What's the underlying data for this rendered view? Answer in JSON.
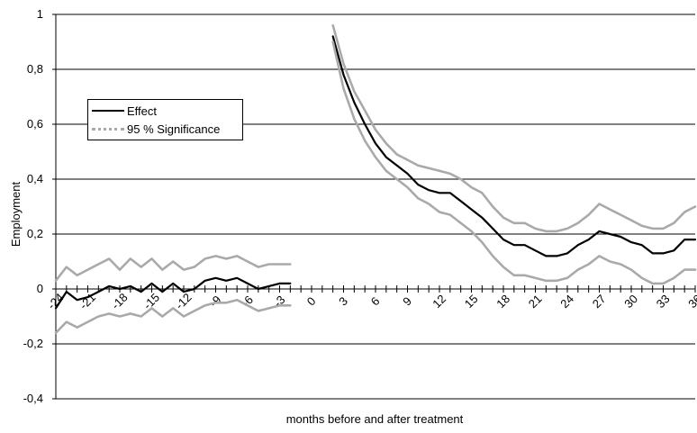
{
  "chart_data": {
    "type": "line",
    "title": "",
    "xlabel": "months before and after treatment",
    "ylabel": "Employment",
    "ylim": [
      -0.4,
      1.0
    ],
    "xlim": [
      -24,
      36
    ],
    "y_ticks": [
      -0.4,
      -0.2,
      0,
      0.2,
      0.4,
      0.6,
      0.8,
      1.0
    ],
    "y_tick_labels": [
      "-0,4",
      "-0,2",
      "0",
      "0,2",
      "0,4",
      "0,6",
      "0,8",
      "1"
    ],
    "x_tick_labels": [
      -24,
      -21,
      -18,
      -15,
      -12,
      -9,
      -6,
      -3,
      0,
      3,
      6,
      9,
      12,
      15,
      18,
      21,
      24,
      27,
      30,
      33,
      36
    ],
    "grid": "horizontal",
    "legend_position": "upper-left",
    "series": [
      {
        "name": "Effect",
        "color": "#000000",
        "segments": [
          {
            "x": [
              -24,
              -23,
              -22,
              -21,
              -20,
              -19,
              -18,
              -17,
              -16,
              -15,
              -14,
              -13,
              -12,
              -11,
              -10,
              -9,
              -8,
              -7,
              -6,
              -5,
              -4,
              -3,
              -2
            ],
            "y": [
              -0.07,
              -0.01,
              -0.04,
              -0.03,
              -0.01,
              0.01,
              0.0,
              0.01,
              -0.01,
              0.02,
              -0.01,
              0.02,
              -0.01,
              0.0,
              0.03,
              0.04,
              0.03,
              0.04,
              0.02,
              0.0,
              0.01,
              0.02,
              0.02
            ]
          },
          {
            "x": [
              2,
              3,
              4,
              5,
              6,
              7,
              8,
              9,
              10,
              11,
              12,
              13,
              14,
              15,
              16,
              17,
              18,
              19,
              20,
              21,
              22,
              23,
              24,
              25,
              26,
              27,
              28,
              29,
              30,
              31,
              32,
              33,
              34,
              35,
              36
            ],
            "y": [
              0.92,
              0.78,
              0.68,
              0.6,
              0.53,
              0.48,
              0.45,
              0.42,
              0.38,
              0.36,
              0.35,
              0.35,
              0.32,
              0.29,
              0.26,
              0.22,
              0.18,
              0.16,
              0.16,
              0.14,
              0.12,
              0.12,
              0.13,
              0.16,
              0.18,
              0.21,
              0.2,
              0.19,
              0.17,
              0.16,
              0.13,
              0.13,
              0.14,
              0.18,
              0.18
            ]
          }
        ]
      },
      {
        "name": "95 % Significance",
        "color": "#a9a9a9",
        "segments": [
          {
            "x": [
              -24,
              -23,
              -22,
              -21,
              -20,
              -19,
              -18,
              -17,
              -16,
              -15,
              -14,
              -13,
              -12,
              -11,
              -10,
              -9,
              -8,
              -7,
              -6,
              -5,
              -4,
              -3,
              -2
            ],
            "y": [
              0.03,
              0.08,
              0.05,
              0.07,
              0.09,
              0.11,
              0.07,
              0.11,
              0.08,
              0.11,
              0.07,
              0.1,
              0.07,
              0.08,
              0.11,
              0.12,
              0.11,
              0.12,
              0.1,
              0.08,
              0.09,
              0.09,
              0.09
            ]
          },
          {
            "x": [
              -24,
              -23,
              -22,
              -21,
              -20,
              -19,
              -18,
              -17,
              -16,
              -15,
              -14,
              -13,
              -12,
              -11,
              -10,
              -9,
              -8,
              -7,
              -6,
              -5,
              -4,
              -3,
              -2
            ],
            "y": [
              -0.16,
              -0.12,
              -0.14,
              -0.12,
              -0.1,
              -0.09,
              -0.1,
              -0.09,
              -0.1,
              -0.07,
              -0.1,
              -0.07,
              -0.1,
              -0.08,
              -0.06,
              -0.05,
              -0.05,
              -0.04,
              -0.06,
              -0.08,
              -0.07,
              -0.06,
              -0.06
            ]
          },
          {
            "x": [
              2,
              3,
              4,
              5,
              6,
              7,
              8,
              9,
              10,
              11,
              12,
              13,
              14,
              15,
              16,
              17,
              18,
              19,
              20,
              21,
              22,
              23,
              24,
              25,
              26,
              27,
              28,
              29,
              30,
              31,
              32,
              33,
              34,
              35,
              36
            ],
            "y": [
              0.96,
              0.82,
              0.72,
              0.65,
              0.58,
              0.53,
              0.49,
              0.47,
              0.45,
              0.44,
              0.43,
              0.42,
              0.4,
              0.37,
              0.35,
              0.3,
              0.26,
              0.24,
              0.24,
              0.22,
              0.21,
              0.21,
              0.22,
              0.24,
              0.27,
              0.31,
              0.29,
              0.27,
              0.25,
              0.23,
              0.22,
              0.22,
              0.24,
              0.28,
              0.3
            ]
          },
          {
            "x": [
              2,
              3,
              4,
              5,
              6,
              7,
              8,
              9,
              10,
              11,
              12,
              13,
              14,
              15,
              16,
              17,
              18,
              19,
              20,
              21,
              22,
              23,
              24,
              25,
              26,
              27,
              28,
              29,
              30,
              31,
              32,
              33,
              34,
              35,
              36
            ],
            "y": [
              0.9,
              0.73,
              0.62,
              0.54,
              0.48,
              0.43,
              0.4,
              0.37,
              0.33,
              0.31,
              0.28,
              0.27,
              0.24,
              0.21,
              0.17,
              0.12,
              0.08,
              0.05,
              0.05,
              0.04,
              0.03,
              0.03,
              0.04,
              0.07,
              0.09,
              0.12,
              0.1,
              0.09,
              0.07,
              0.04,
              0.02,
              0.02,
              0.04,
              0.07,
              0.07
            ]
          }
        ]
      }
    ]
  }
}
